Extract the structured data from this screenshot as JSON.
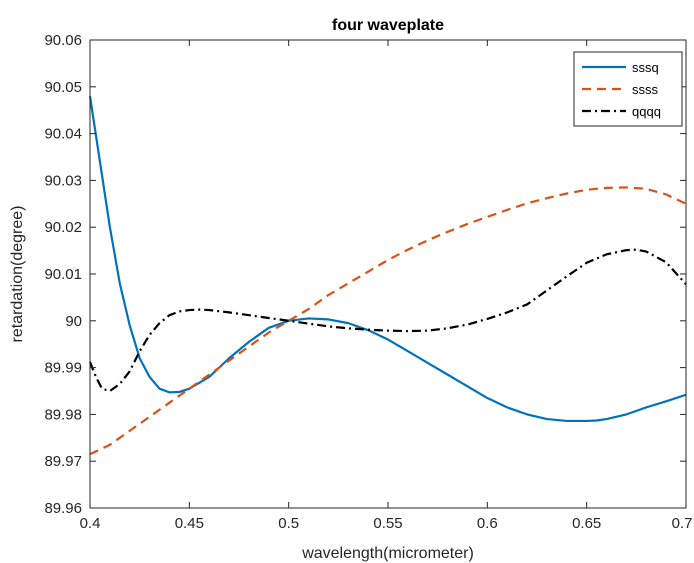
{
  "chart_data": {
    "type": "line",
    "title": "four waveplate",
    "xlabel": "wavelength(micrometer)",
    "ylabel": "retardation(degree)",
    "xlim": [
      0.4,
      0.7
    ],
    "ylim": [
      89.96,
      90.06
    ],
    "xticks": [
      0.4,
      0.45,
      0.5,
      0.55,
      0.6,
      0.65,
      0.7
    ],
    "xtick_labels": [
      "0.4",
      "0.45",
      "0.5",
      "0.55",
      "0.6",
      "0.65",
      "0.7"
    ],
    "yticks": [
      89.96,
      89.97,
      89.98,
      89.99,
      90.0,
      90.01,
      90.02,
      90.03,
      90.04,
      90.05,
      90.06
    ],
    "ytick_labels": [
      "89.96",
      "89.97",
      "89.98",
      "89.99",
      "90",
      "90.01",
      "90.02",
      "90.03",
      "90.04",
      "90.05",
      "90.06"
    ],
    "grid": false,
    "legend_position": "top-right",
    "series": [
      {
        "name": "sssq",
        "color": "#0072BD",
        "dash": "solid",
        "x": [
          0.4,
          0.405,
          0.41,
          0.415,
          0.42,
          0.425,
          0.43,
          0.435,
          0.44,
          0.445,
          0.45,
          0.46,
          0.47,
          0.48,
          0.49,
          0.5,
          0.51,
          0.52,
          0.53,
          0.54,
          0.55,
          0.56,
          0.57,
          0.58,
          0.59,
          0.6,
          0.61,
          0.62,
          0.63,
          0.64,
          0.65,
          0.655,
          0.66,
          0.67,
          0.68,
          0.69,
          0.7
        ],
        "y": [
          90.048,
          90.034,
          90.02,
          90.008,
          89.999,
          89.992,
          89.988,
          89.9855,
          89.9847,
          89.9848,
          89.9855,
          89.988,
          89.992,
          89.9955,
          89.9985,
          90.0,
          90.0005,
          90.0003,
          89.9995,
          89.998,
          89.996,
          89.9935,
          89.991,
          89.9885,
          89.986,
          89.9835,
          89.9815,
          89.98,
          89.979,
          89.9786,
          89.9786,
          89.9787,
          89.979,
          89.98,
          89.9815,
          89.9828,
          89.9842
        ]
      },
      {
        "name": "ssss",
        "color": "#D95319",
        "dash": "dashed",
        "x": [
          0.4,
          0.41,
          0.42,
          0.43,
          0.44,
          0.45,
          0.46,
          0.47,
          0.48,
          0.49,
          0.5,
          0.51,
          0.52,
          0.53,
          0.54,
          0.55,
          0.56,
          0.57,
          0.58,
          0.59,
          0.6,
          0.61,
          0.62,
          0.63,
          0.64,
          0.65,
          0.66,
          0.67,
          0.68,
          0.69,
          0.7
        ],
        "y": [
          89.9715,
          89.9735,
          89.9765,
          89.9795,
          89.9825,
          89.9855,
          89.9885,
          89.9915,
          89.9945,
          89.9975,
          90.0,
          90.0025,
          90.0055,
          90.008,
          90.0105,
          90.013,
          90.0152,
          90.0172,
          90.019,
          90.0207,
          90.0222,
          90.0237,
          90.0251,
          90.0262,
          90.0272,
          90.028,
          90.0284,
          90.0285,
          90.0282,
          90.027,
          90.025
        ]
      },
      {
        "name": "qqqq",
        "color": "#000000",
        "dash": "dashdot",
        "x": [
          0.4,
          0.403,
          0.406,
          0.41,
          0.415,
          0.42,
          0.425,
          0.43,
          0.435,
          0.44,
          0.445,
          0.45,
          0.455,
          0.46,
          0.47,
          0.48,
          0.49,
          0.5,
          0.51,
          0.52,
          0.53,
          0.54,
          0.55,
          0.56,
          0.57,
          0.58,
          0.59,
          0.6,
          0.61,
          0.62,
          0.63,
          0.64,
          0.65,
          0.66,
          0.67,
          0.675,
          0.68,
          0.69,
          0.7
        ],
        "y": [
          89.9912,
          89.988,
          89.9855,
          89.985,
          89.9865,
          89.9892,
          89.9935,
          89.997,
          89.9995,
          90.0012,
          90.002,
          90.0023,
          90.0024,
          90.0023,
          90.0018,
          90.0012,
          90.0006,
          90.0,
          89.9994,
          89.9988,
          89.9984,
          89.9981,
          89.9979,
          89.9978,
          89.9979,
          89.9984,
          89.9992,
          90.0004,
          90.0018,
          90.0035,
          90.0065,
          90.0095,
          90.0124,
          90.0142,
          90.0151,
          90.0152,
          90.0148,
          90.0125,
          90.0078
        ]
      }
    ]
  }
}
